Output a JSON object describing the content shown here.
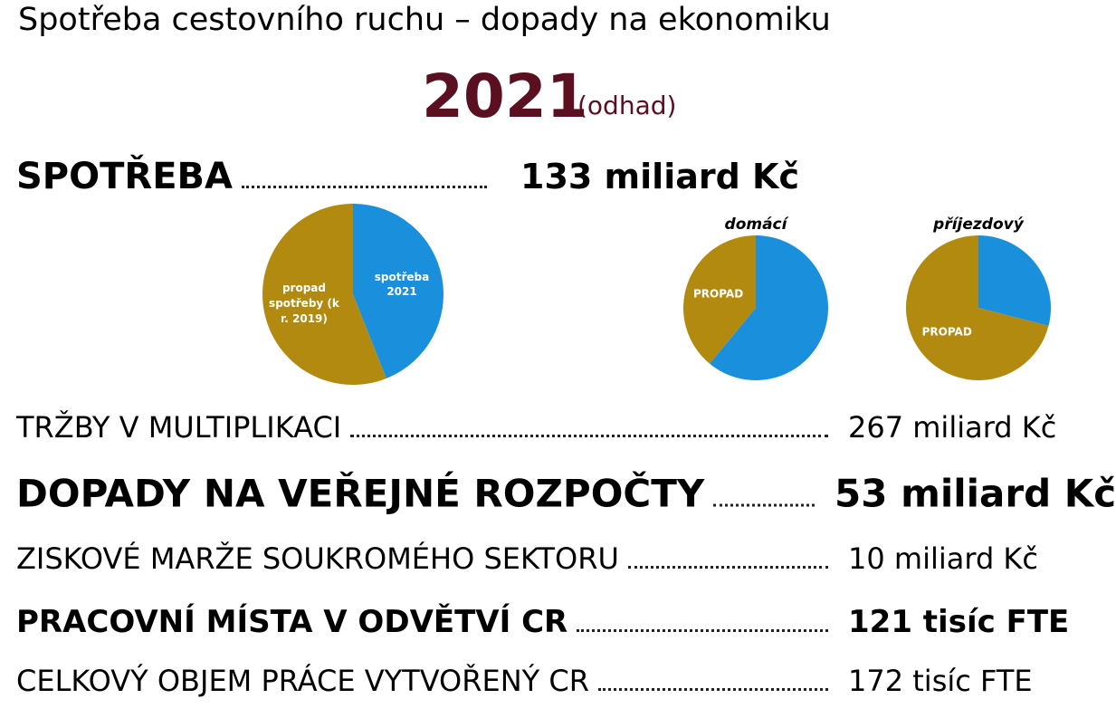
{
  "header": {
    "title": "Spotřeba cestovního ruchu – dopady na ekonomiku",
    "year": "2021",
    "note": "(odhad)"
  },
  "summary": {
    "label": "SPOTŘEBA",
    "value": "133 miliard Kč"
  },
  "chart_data": [
    {
      "type": "pie",
      "categories": [
        "spotřeba 2021",
        "propad spotřeby (k r. 2019)"
      ],
      "values": [
        44,
        56
      ],
      "colors": [
        "#1a8fdc",
        "#b38a10"
      ]
    },
    {
      "type": "pie",
      "title": "domácí",
      "categories": [
        null,
        "PROPAD"
      ],
      "values": [
        61,
        39
      ],
      "colors": [
        "#1a8fdc",
        "#b38a10"
      ]
    },
    {
      "type": "pie",
      "title": "příjezdový",
      "categories": [
        null,
        "PROPAD"
      ],
      "values": [
        29,
        71
      ],
      "colors": [
        "#1a8fdc",
        "#b38a10"
      ]
    }
  ],
  "rows": [
    {
      "label": "TRŽBY V MULTIPLIKACI",
      "value": "267 miliard Kč",
      "bold": false
    },
    {
      "label": "DOPADY NA VEŘEJNÉ ROZPOČTY",
      "value": "53 miliard Kč",
      "bold": true
    },
    {
      "label": "ZISKOVÉ MARŽE SOUKROMÉHO SEKTORU",
      "value": "10 miliard Kč",
      "bold": false
    },
    {
      "label": "PRACOVNÍ MÍSTA V ODVĚTVÍ CR",
      "value": "121 tisíc FTE",
      "bold": true
    },
    {
      "label": "CELKOVÝ OBJEM PRÁCE VYTVOŘENÝ CR",
      "value": "172 tisíc FTE",
      "bold": false
    }
  ]
}
